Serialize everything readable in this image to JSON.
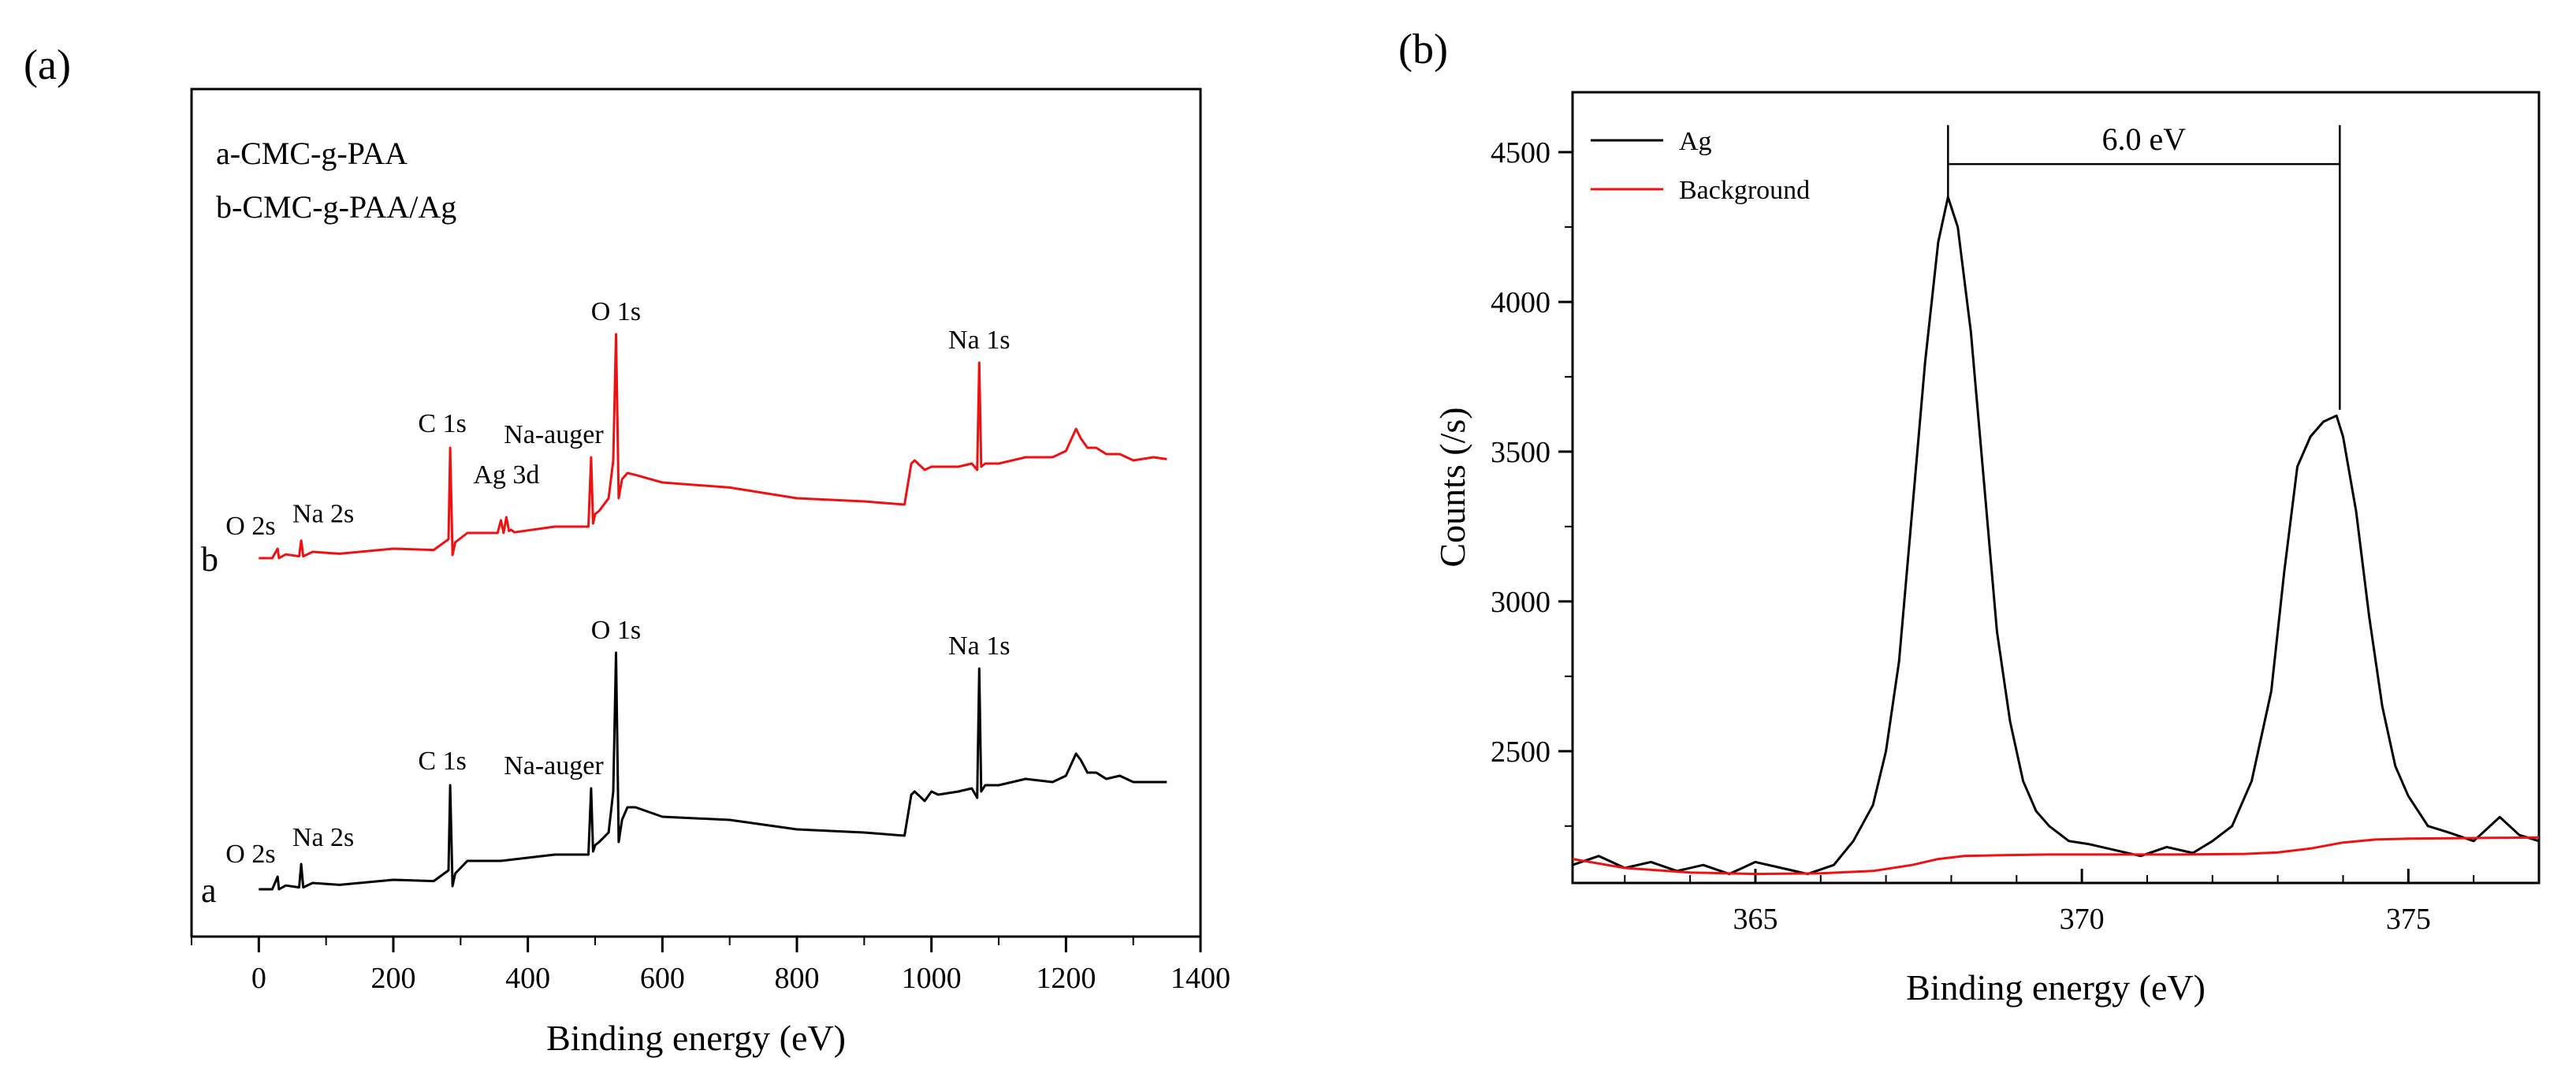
{
  "chart_data": [
    {
      "panel": "(a)",
      "type": "line",
      "xlabel": "Binding energy (eV)",
      "ylabel": "",
      "xlim": [
        -100,
        1400
      ],
      "xticks": [
        0,
        200,
        400,
        600,
        800,
        1000,
        1200,
        1400
      ],
      "legend_lines": [
        "a-CMC-g-PAA",
        "b-CMC-g-PAA/Ag"
      ],
      "series": [
        {
          "name": "a",
          "label": "a",
          "color": "#000000",
          "x": [
            0,
            20,
            28,
            30,
            40,
            60,
            63,
            66,
            80,
            120,
            200,
            260,
            282,
            284.5,
            288,
            292,
            310,
            360,
            440,
            490,
            494,
            497,
            500,
            506,
            520,
            527,
            531,
            535,
            540,
            548,
            560,
            600,
            700,
            800,
            900,
            960,
            970,
            975,
            990,
            1000,
            1010,
            1040,
            1060,
            1068,
            1071,
            1074,
            1080,
            1100,
            1140,
            1180,
            1200,
            1215,
            1222,
            1232,
            1245,
            1260,
            1280,
            1300,
            1330,
            1350
          ],
          "y": [
            0,
            5,
            20,
            5,
            6,
            8,
            40,
            8,
            10,
            12,
            15,
            18,
            30,
            170,
            5,
            30,
            45,
            50,
            55,
            60,
            160,
            65,
            70,
            80,
            90,
            160,
            375,
            80,
            110,
            135,
            130,
            120,
            110,
            100,
            90,
            90,
            150,
            160,
            140,
            160,
            150,
            160,
            160,
            150,
            350,
            160,
            165,
            170,
            175,
            175,
            180,
            220,
            205,
            190,
            185,
            180,
            180,
            175,
            170,
            175
          ]
        },
        {
          "name": "b",
          "label": "b",
          "color": "#ee1111",
          "x": [
            0,
            20,
            28,
            30,
            40,
            60,
            63,
            66,
            80,
            120,
            200,
            260,
            282,
            284.5,
            288,
            292,
            310,
            355,
            360,
            364,
            368,
            372,
            375,
            380,
            440,
            490,
            494,
            497,
            500,
            506,
            520,
            527,
            531,
            535,
            540,
            548,
            560,
            600,
            700,
            800,
            900,
            960,
            970,
            975,
            990,
            1000,
            1010,
            1040,
            1060,
            1068,
            1071,
            1074,
            1080,
            1100,
            1140,
            1180,
            1200,
            1215,
            1222,
            1232,
            1245,
            1260,
            1280,
            1300,
            1330,
            1350
          ],
          "y": [
            0,
            5,
            15,
            5,
            6,
            8,
            28,
            8,
            10,
            12,
            15,
            18,
            30,
            180,
            5,
            30,
            40,
            45,
            60,
            45,
            65,
            48,
            45,
            46,
            50,
            55,
            160,
            60,
            70,
            80,
            95,
            160,
            355,
            100,
            125,
            140,
            132,
            125,
            112,
            100,
            90,
            90,
            150,
            160,
            140,
            150,
            145,
            150,
            150,
            145,
            310,
            150,
            150,
            155,
            160,
            165,
            170,
            210,
            190,
            180,
            175,
            170,
            165,
            160,
            160,
            162
          ]
        }
      ],
      "annotations": [
        {
          "text": "O 2s",
          "x": 23,
          "series": "a"
        },
        {
          "text": "Na 2s",
          "x": 63,
          "series": "a"
        },
        {
          "text": "C 1s",
          "x": 284.5,
          "series": "a"
        },
        {
          "text": "Na-auger",
          "x": 497,
          "series": "a"
        },
        {
          "text": "O 1s",
          "x": 531,
          "series": "a"
        },
        {
          "text": "Na 1s",
          "x": 1071,
          "series": "a"
        },
        {
          "text": "O 2s",
          "x": 23,
          "series": "b"
        },
        {
          "text": "Na 2s",
          "x": 63,
          "series": "b"
        },
        {
          "text": "C 1s",
          "x": 284.5,
          "series": "b"
        },
        {
          "text": "Ag 3d",
          "x": 368,
          "series": "b"
        },
        {
          "text": "Na-auger",
          "x": 497,
          "series": "b"
        },
        {
          "text": "O 1s",
          "x": 531,
          "series": "b"
        },
        {
          "text": "Na 1s",
          "x": 1071,
          "series": "b"
        }
      ]
    },
    {
      "panel": "(b)",
      "type": "line",
      "xlabel": "Binding energy (eV)",
      "ylabel": "Counts (/s)",
      "xlim": [
        362.2,
        377.0
      ],
      "ylim": [
        2060,
        4700
      ],
      "xticks": [
        365,
        370,
        375
      ],
      "yticks": [
        2500,
        3000,
        3500,
        4000,
        4500
      ],
      "legend": [
        {
          "label": "Ag",
          "color": "#000000"
        },
        {
          "label": "Background",
          "color": "#ee1111"
        }
      ],
      "series": [
        {
          "name": "Ag",
          "color": "#000000",
          "x": [
            362.2,
            362.6,
            363.0,
            363.4,
            363.8,
            364.2,
            364.6,
            365.0,
            365.4,
            365.8,
            366.2,
            366.5,
            366.8,
            367.0,
            367.2,
            367.4,
            367.6,
            367.8,
            367.95,
            368.1,
            368.3,
            368.5,
            368.7,
            368.9,
            369.1,
            369.3,
            369.5,
            369.8,
            370.1,
            370.5,
            370.9,
            371.3,
            371.7,
            372.0,
            372.3,
            372.6,
            372.9,
            373.1,
            373.3,
            373.5,
            373.7,
            373.9,
            374.0,
            374.2,
            374.4,
            374.6,
            374.8,
            375.0,
            375.3,
            375.6,
            376.0,
            376.4,
            376.7,
            377.0
          ],
          "y": [
            2120,
            2150,
            2110,
            2130,
            2100,
            2120,
            2090,
            2130,
            2110,
            2090,
            2120,
            2200,
            2320,
            2500,
            2800,
            3300,
            3800,
            4200,
            4350,
            4250,
            3900,
            3400,
            2900,
            2600,
            2400,
            2300,
            2250,
            2200,
            2190,
            2170,
            2150,
            2180,
            2160,
            2200,
            2250,
            2400,
            2700,
            3100,
            3450,
            3550,
            3600,
            3620,
            3550,
            3300,
            2950,
            2650,
            2450,
            2350,
            2250,
            2230,
            2200,
            2280,
            2220,
            2200
          ]
        },
        {
          "name": "Background",
          "color": "#ee1111",
          "x": [
            362.2,
            363.0,
            364.0,
            365.0,
            366.0,
            366.8,
            367.4,
            367.8,
            368.2,
            368.8,
            369.5,
            370.5,
            371.5,
            372.5,
            373.0,
            373.5,
            374.0,
            374.5,
            375.0,
            376.0,
            377.0
          ],
          "y": [
            2140,
            2110,
            2095,
            2090,
            2092,
            2100,
            2120,
            2140,
            2150,
            2153,
            2155,
            2155,
            2155,
            2157,
            2162,
            2175,
            2195,
            2205,
            2208,
            2210,
            2212
          ]
        }
      ],
      "annotations": [
        {
          "text": "6.0 eV",
          "x1": 367.95,
          "x2": 373.95,
          "y": 4460
        }
      ]
    }
  ],
  "panel_labels": {
    "a": "(a)",
    "b": "(b)"
  }
}
